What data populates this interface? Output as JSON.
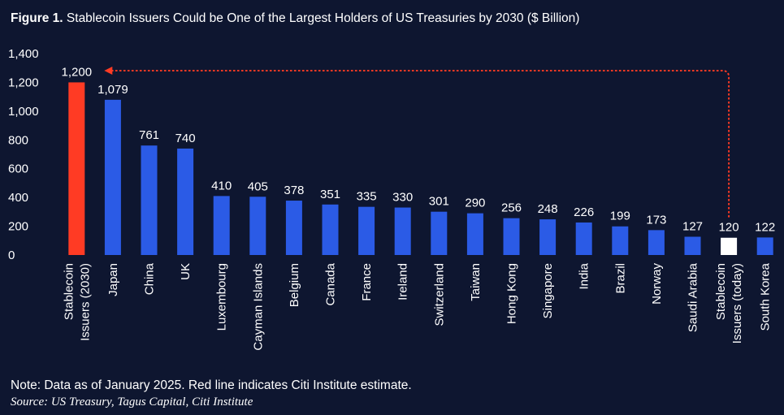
{
  "header": {
    "figure_label": "Figure 1.",
    "title": "Stablecoin Issuers Could be One of the Largest Holders of US Treasuries by 2030 ($ Billion)"
  },
  "footer": {
    "note": "Note: Data as of January 2025. Red line indicates Citi Institute estimate.",
    "source": "Source: US Treasury, Tagus Capital, Citi Institute"
  },
  "colors": {
    "background": "#0e1630",
    "bar_default": "#2b5be6",
    "bar_estimate": "#ff3b24",
    "bar_today": "#ffffff",
    "arrow": "#ff3b24"
  },
  "chart_data": {
    "type": "bar",
    "title": "Stablecoin Issuers Could be One of the Largest Holders of US Treasuries by 2030 ($ Billion)",
    "xlabel": "",
    "ylabel": "",
    "ylim": [
      0,
      1400
    ],
    "yticks": [
      "0",
      "200",
      "400",
      "600",
      "800",
      "1,000",
      "1,200",
      "1,400"
    ],
    "grid": false,
    "categories": [
      [
        "Stablecoin",
        "Issuers (2030)"
      ],
      [
        "Japan"
      ],
      [
        "China"
      ],
      [
        "UK"
      ],
      [
        "Luxembourg"
      ],
      [
        "Cayman Islands"
      ],
      [
        "Belgium"
      ],
      [
        "Canada"
      ],
      [
        "France"
      ],
      [
        "Ireland"
      ],
      [
        "Switzerland"
      ],
      [
        "Taiwan"
      ],
      [
        "Hong Kong"
      ],
      [
        "Singapore"
      ],
      [
        "India"
      ],
      [
        "Brazil"
      ],
      [
        "Norway"
      ],
      [
        "Saudi Arabia"
      ],
      [
        "Stablecoin",
        "Issuers (today)"
      ],
      [
        "South Korea"
      ]
    ],
    "values": [
      1200,
      1079,
      761,
      740,
      410,
      405,
      378,
      351,
      335,
      330,
      301,
      290,
      256,
      248,
      226,
      199,
      173,
      127,
      120,
      122
    ],
    "value_labels": [
      "1,200",
      "1,079",
      "761",
      "740",
      "410",
      "405",
      "378",
      "351",
      "335",
      "330",
      "301",
      "290",
      "256",
      "248",
      "226",
      "199",
      "173",
      "127",
      "120",
      "122"
    ],
    "highlight": {
      "estimate_index": 0,
      "today_index": 18
    },
    "annotation": "dotted arrow from today bar to 2030 estimate bar"
  }
}
